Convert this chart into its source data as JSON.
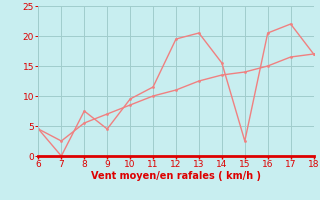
{
  "x": [
    6,
    7,
    8,
    9,
    10,
    11,
    12,
    13,
    14,
    15,
    16,
    17,
    18
  ],
  "y_gust": [
    4.5,
    0.0,
    7.5,
    4.5,
    9.5,
    11.5,
    19.5,
    20.5,
    15.5,
    2.5,
    20.5,
    22.0,
    17.0
  ],
  "y_avg": [
    4.5,
    2.5,
    5.5,
    7.0,
    8.5,
    10.0,
    11.0,
    12.5,
    13.5,
    14.0,
    15.0,
    16.5,
    17.0
  ],
  "line_color": "#f08080",
  "background_color": "#c8eef0",
  "grid_color": "#a0cccc",
  "bottom_axis_color": "#dd0000",
  "text_color": "#dd0000",
  "xlabel": "Vent moyen/en rafales ( km/h )",
  "xlim": [
    6,
    18
  ],
  "ylim": [
    0,
    25
  ],
  "xticks": [
    6,
    7,
    8,
    9,
    10,
    11,
    12,
    13,
    14,
    15,
    16,
    17,
    18
  ],
  "yticks": [
    0,
    5,
    10,
    15,
    20,
    25
  ],
  "figwidth": 3.2,
  "figheight": 2.0,
  "dpi": 100
}
